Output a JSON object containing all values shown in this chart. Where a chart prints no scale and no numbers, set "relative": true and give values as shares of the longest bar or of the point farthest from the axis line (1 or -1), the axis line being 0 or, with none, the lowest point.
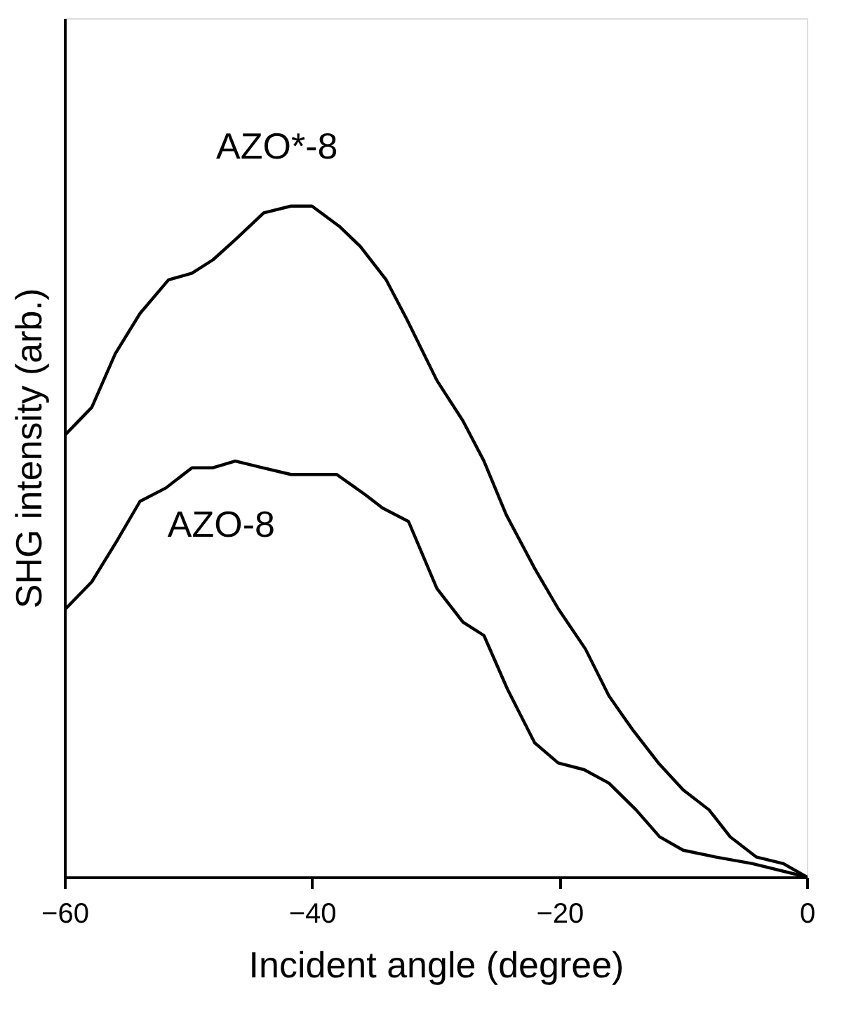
{
  "chart_data": {
    "type": "line",
    "relative": true,
    "xlabel": "Incident angle (degree)",
    "ylabel": "SHG intensity (arb.)",
    "xlim": [
      -60,
      0
    ],
    "xticks": [
      -60,
      -40,
      -20,
      0
    ],
    "marker": "none",
    "line_style": "solid",
    "series": [
      {
        "name": "AZO*-8",
        "color": "#000000",
        "x": [
          -59.9,
          -57.8,
          -55.9,
          -53.9,
          -51.6,
          -49.7,
          -48.0,
          -46.2,
          -43.9,
          -41.7,
          -40.0,
          -37.8,
          -36.1,
          -34.0,
          -32.3,
          -29.9,
          -27.8,
          -26.1,
          -24.3,
          -22.0,
          -20.1,
          -17.9,
          -16.0,
          -14.1,
          -12.0,
          -10.0,
          -7.9,
          -6.2,
          -4.1,
          -1.9,
          0
        ],
        "values": [
          0.66,
          0.7,
          0.78,
          0.84,
          0.89,
          0.9,
          0.92,
          0.95,
          0.99,
          1.0,
          1.0,
          0.97,
          0.94,
          0.89,
          0.83,
          0.74,
          0.68,
          0.62,
          0.54,
          0.46,
          0.4,
          0.34,
          0.27,
          0.22,
          0.17,
          0.13,
          0.1,
          0.06,
          0.03,
          0.02,
          0
        ]
      },
      {
        "name": "AZO-8",
        "color": "#000000",
        "x": [
          -59.9,
          -57.8,
          -55.8,
          -53.9,
          -51.8,
          -49.7,
          -48.0,
          -46.2,
          -44.0,
          -41.7,
          -38.0,
          -35.7,
          -34.3,
          -32.2,
          -29.9,
          -27.8,
          -26.1,
          -24.2,
          -22.0,
          -20.1,
          -18.0,
          -16.0,
          -13.8,
          -11.9,
          -10.0,
          -7.4,
          -4.4,
          0
        ],
        "values": [
          0.4,
          0.44,
          0.5,
          0.56,
          0.58,
          0.61,
          0.61,
          0.62,
          0.61,
          0.6,
          0.6,
          0.57,
          0.55,
          0.53,
          0.43,
          0.38,
          0.36,
          0.28,
          0.2,
          0.17,
          0.16,
          0.14,
          0.1,
          0.06,
          0.04,
          0.03,
          0.02,
          0
        ]
      }
    ]
  }
}
